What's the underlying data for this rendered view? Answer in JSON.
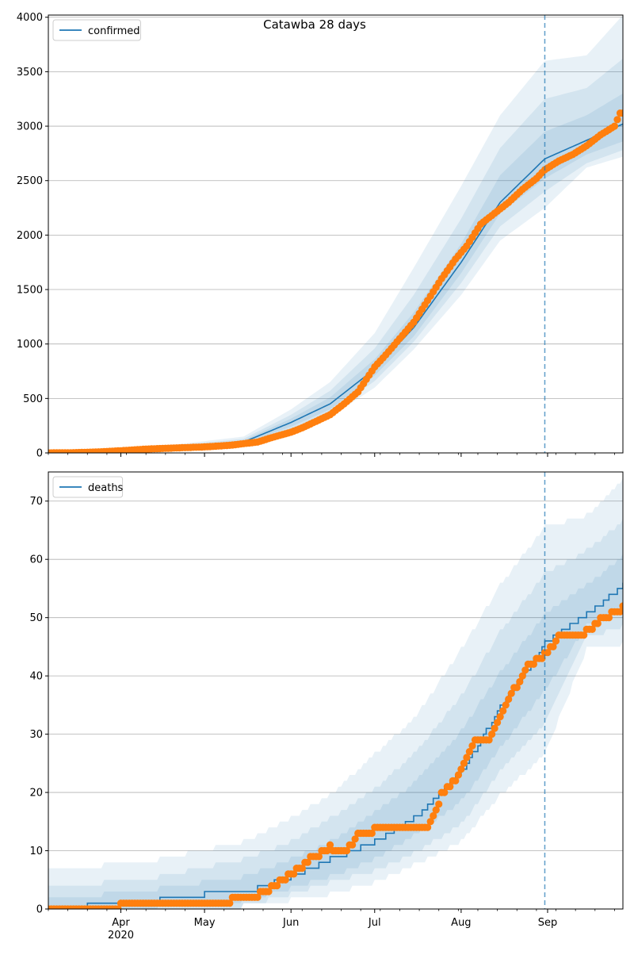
{
  "figure": {
    "title": "Catawba 28 days",
    "x_months": [
      "Apr",
      "May",
      "Jun",
      "Jul",
      "Aug",
      "Sep"
    ],
    "x_year": "2020",
    "colors": {
      "model": "#1f77b4",
      "observed": "#ff7f0e",
      "band": "#1f77b4",
      "grid": "#b0b0b0",
      "forecast_line": "#1f77b4"
    },
    "x_domain": [
      "2020-03-06",
      "2020-09-28"
    ],
    "forecast_date": "2020-08-31",
    "month_starts": [
      "2020-04-01",
      "2020-05-01",
      "2020-06-01",
      "2020-07-01",
      "2020-08-01",
      "2020-09-01"
    ]
  },
  "chart_data": [
    {
      "type": "line",
      "legend": "confirmed",
      "legend_position": "upper-left",
      "grid": "horizontal",
      "yticks": [
        0,
        500,
        1000,
        1500,
        2000,
        2500,
        3000,
        3500,
        4000
      ],
      "ylim": [
        0,
        4020
      ],
      "model": {
        "x": [
          "2020-03-06",
          "2020-03-20",
          "2020-04-01",
          "2020-04-15",
          "2020-05-01",
          "2020-05-15",
          "2020-06-01",
          "2020-06-15",
          "2020-07-01",
          "2020-07-15",
          "2020-08-01",
          "2020-08-15",
          "2020-08-31",
          "2020-09-15",
          "2020-09-28"
        ],
        "y": [
          0,
          5,
          20,
          40,
          60,
          100,
          280,
          450,
          770,
          1150,
          1750,
          2300,
          2700,
          2870,
          3020
        ]
      },
      "bands": [
        {
          "x": [
            "2020-03-06",
            "2020-04-15",
            "2020-05-15",
            "2020-06-01",
            "2020-06-15",
            "2020-07-01",
            "2020-07-15",
            "2020-08-01",
            "2020-08-15",
            "2020-08-31",
            "2020-09-15",
            "2020-09-28"
          ],
          "lo": [
            0,
            30,
            70,
            180,
            330,
            600,
            950,
            1450,
            1950,
            2250,
            2620,
            2720
          ],
          "hi": [
            0,
            60,
            150,
            400,
            650,
            1100,
            1700,
            2450,
            3100,
            3600,
            3650,
            4020
          ]
        },
        {
          "x": [
            "2020-03-06",
            "2020-04-15",
            "2020-05-15",
            "2020-06-01",
            "2020-06-15",
            "2020-07-01",
            "2020-07-15",
            "2020-08-01",
            "2020-08-15",
            "2020-08-31",
            "2020-09-15",
            "2020-09-28"
          ],
          "lo": [
            0,
            33,
            80,
            210,
            370,
            660,
            1020,
            1560,
            2080,
            2400,
            2660,
            2780
          ],
          "hi": [
            0,
            52,
            130,
            350,
            570,
            960,
            1450,
            2150,
            2800,
            3250,
            3350,
            3620
          ]
        },
        {
          "x": [
            "2020-03-06",
            "2020-04-15",
            "2020-05-15",
            "2020-06-01",
            "2020-06-15",
            "2020-07-01",
            "2020-07-15",
            "2020-08-01",
            "2020-08-15",
            "2020-08-31",
            "2020-09-15",
            "2020-09-28"
          ],
          "lo": [
            0,
            36,
            88,
            240,
            400,
            710,
            1070,
            1650,
            2200,
            2520,
            2740,
            2860
          ],
          "hi": [
            0,
            46,
            115,
            315,
            510,
            860,
            1290,
            1920,
            2550,
            2950,
            3100,
            3300
          ]
        }
      ],
      "observed": {
        "x": [
          "2020-03-06",
          "2020-03-15",
          "2020-03-25",
          "2020-04-01",
          "2020-04-10",
          "2020-04-20",
          "2020-05-01",
          "2020-05-10",
          "2020-05-20",
          "2020-05-25",
          "2020-06-01",
          "2020-06-05",
          "2020-06-10",
          "2020-06-15",
          "2020-06-20",
          "2020-06-25",
          "2020-07-01",
          "2020-07-05",
          "2020-07-10",
          "2020-07-15",
          "2020-07-20",
          "2020-07-25",
          "2020-07-30",
          "2020-08-03",
          "2020-08-08",
          "2020-08-13",
          "2020-08-18",
          "2020-08-23",
          "2020-08-28",
          "2020-08-31",
          "2020-09-05",
          "2020-09-10",
          "2020-09-15",
          "2020-09-20",
          "2020-09-25",
          "2020-09-27"
        ],
        "y": [
          0,
          2,
          10,
          20,
          35,
          45,
          55,
          70,
          100,
          140,
          190,
          230,
          290,
          350,
          450,
          560,
          790,
          900,
          1050,
          1200,
          1400,
          1600,
          1780,
          1900,
          2100,
          2200,
          2300,
          2420,
          2520,
          2600,
          2680,
          2740,
          2820,
          2920,
          3000,
          3120
        ]
      }
    },
    {
      "type": "line",
      "legend": "deaths",
      "legend_position": "upper-left",
      "grid": "horizontal",
      "yticks": [
        0,
        10,
        20,
        30,
        40,
        50,
        60,
        70
      ],
      "ylim": [
        0,
        75
      ],
      "model": {
        "x": [
          "2020-03-06",
          "2020-03-20",
          "2020-04-01",
          "2020-04-15",
          "2020-05-01",
          "2020-05-20",
          "2020-06-01",
          "2020-06-15",
          "2020-07-01",
          "2020-07-15",
          "2020-08-01",
          "2020-08-15",
          "2020-08-31",
          "2020-09-15",
          "2020-09-28"
        ],
        "y": [
          0,
          1,
          1,
          2,
          3,
          4,
          6,
          9,
          12,
          16,
          24,
          35,
          46,
          51,
          56
        ]
      },
      "bands": [
        {
          "x": [
            "2020-03-06",
            "2020-04-15",
            "2020-05-15",
            "2020-06-01",
            "2020-06-15",
            "2020-07-01",
            "2020-07-15",
            "2020-08-01",
            "2020-08-15",
            "2020-08-31",
            "2020-09-15",
            "2020-09-28"
          ],
          "lo": [
            0,
            0,
            1,
            2,
            3,
            5,
            8,
            12,
            20,
            27,
            45,
            46
          ],
          "hi": [
            7,
            9,
            12,
            16,
            20,
            27,
            33,
            45,
            56,
            66,
            68,
            74
          ]
        },
        {
          "x": [
            "2020-03-06",
            "2020-04-15",
            "2020-05-15",
            "2020-06-01",
            "2020-06-15",
            "2020-07-01",
            "2020-07-15",
            "2020-08-01",
            "2020-08-15",
            "2020-08-31",
            "2020-09-15",
            "2020-09-28"
          ],
          "lo": [
            0,
            0,
            1,
            3,
            5,
            7,
            10,
            15,
            24,
            32,
            47,
            49
          ],
          "hi": [
            4,
            6,
            9,
            12,
            16,
            21,
            27,
            37,
            48,
            58,
            62,
            67
          ]
        },
        {
          "x": [
            "2020-03-06",
            "2020-04-15",
            "2020-05-15",
            "2020-06-01",
            "2020-06-15",
            "2020-07-01",
            "2020-07-15",
            "2020-08-01",
            "2020-08-15",
            "2020-08-31",
            "2020-09-15",
            "2020-09-28"
          ],
          "lo": [
            0,
            1,
            2,
            4,
            6,
            9,
            13,
            19,
            28,
            38,
            49,
            52
          ],
          "hi": [
            2,
            4,
            6,
            9,
            12,
            17,
            22,
            31,
            41,
            51,
            56,
            61
          ]
        }
      ],
      "observed": {
        "x": [
          "2020-03-06",
          "2020-03-31",
          "2020-04-01",
          "2020-05-10",
          "2020-05-11",
          "2020-05-20",
          "2020-05-21",
          "2020-05-28",
          "2020-05-31",
          "2020-06-03",
          "2020-06-08",
          "2020-06-15",
          "2020-06-20",
          "2020-06-25",
          "2020-07-01",
          "2020-07-10",
          "2020-07-20",
          "2020-07-25",
          "2020-08-01",
          "2020-08-06",
          "2020-08-10",
          "2020-08-15",
          "2020-08-20",
          "2020-08-25",
          "2020-08-31",
          "2020-09-05",
          "2020-09-10",
          "2020-09-15",
          "2020-09-20",
          "2020-09-28"
        ],
        "y": [
          0,
          0,
          1,
          1,
          2,
          2,
          3,
          5,
          6,
          7,
          9,
          11,
          10,
          13,
          14,
          14,
          14,
          20,
          24,
          29,
          29,
          33,
          38,
          42,
          44,
          47,
          47,
          48,
          50,
          52
        ]
      }
    }
  ]
}
